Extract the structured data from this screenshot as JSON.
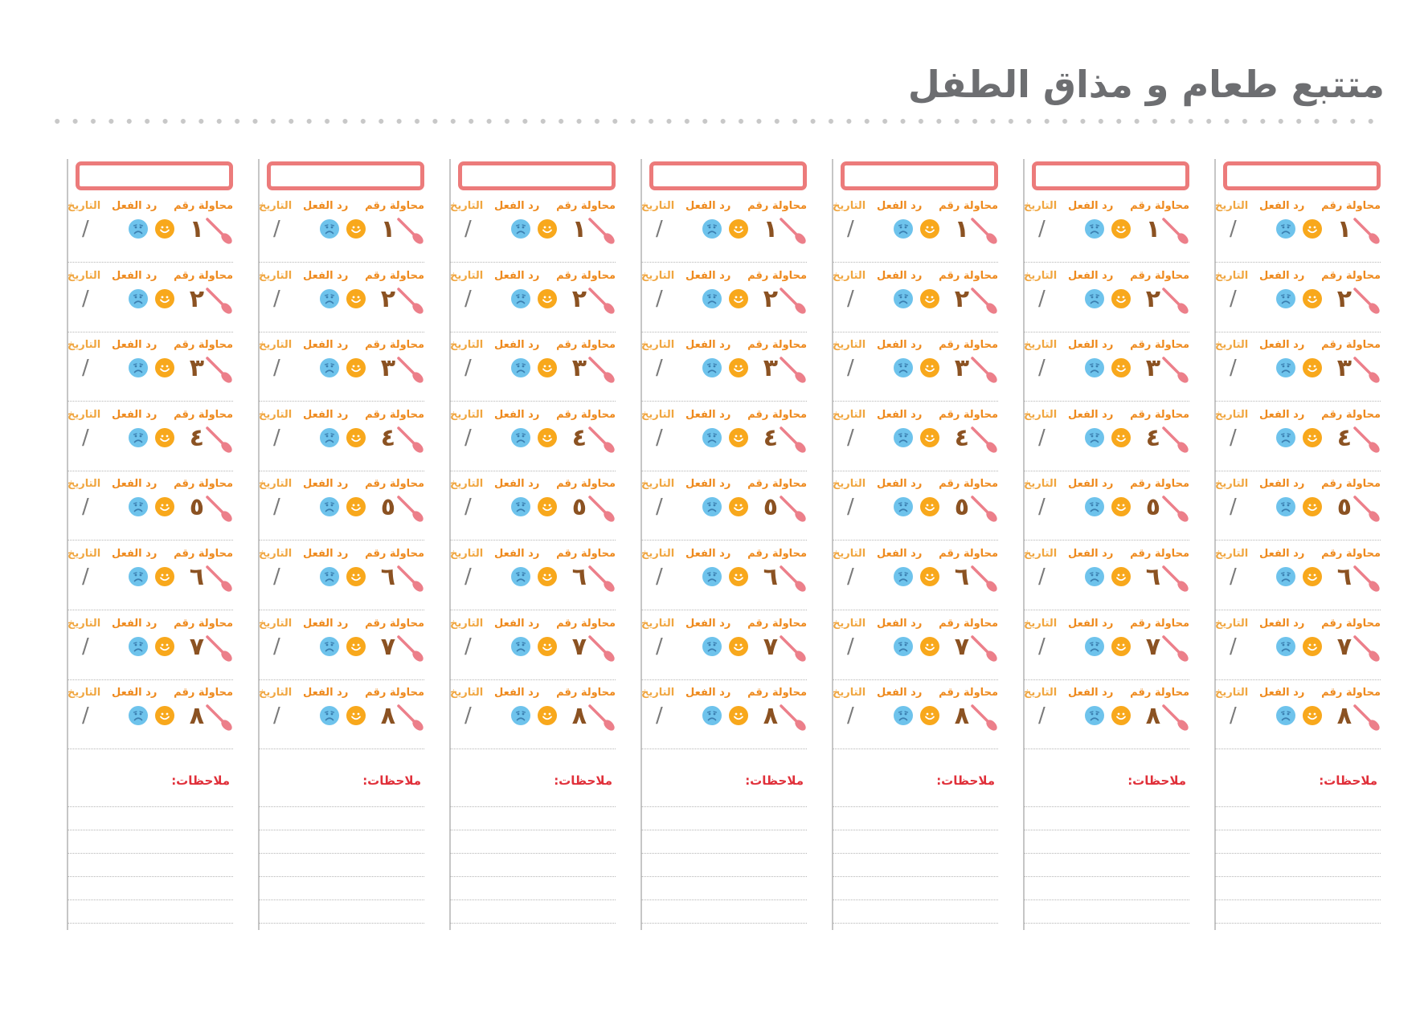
{
  "header": {
    "title": "متتبع طعام و مذاق الطفل"
  },
  "labels": {
    "attempt": "محاولة رقم",
    "reaction": "رد الفعل",
    "date": "التاريخ",
    "date_separator": "/",
    "notes": "ملاحظات:"
  },
  "attempt_numbers": [
    "١",
    "٢",
    "٣",
    "٤",
    "٥",
    "٦",
    "٧",
    "٨"
  ],
  "column_count": 7,
  "note_line_count": 6,
  "icons": {
    "attempt": "spoon-icon",
    "reaction_positive": "happy-face-icon",
    "reaction_negative": "sad-face-icon"
  },
  "colors": {
    "title": "#6d6e71",
    "food_box_border": "#ec7b7b",
    "label_orange": "#ee8a1e",
    "number_brown": "#8b5222",
    "happy_face": "#f8a81c",
    "sad_face": "#6ec3ec",
    "notes_red": "#e0303a",
    "spoon_pink": "#ec7f8a"
  }
}
